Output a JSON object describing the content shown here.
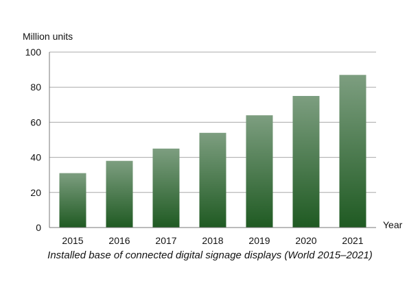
{
  "chart_data": {
    "type": "bar",
    "title": "Installed base of connected digital signage displays (World 2015–2021)",
    "ylabel": "Million units",
    "xlabel": "Year",
    "categories": [
      "2015",
      "2016",
      "2017",
      "2018",
      "2019",
      "2020",
      "2021"
    ],
    "values": [
      31,
      38,
      45,
      54,
      64,
      75,
      87
    ],
    "ylim": [
      0,
      100
    ],
    "yticks": [
      0,
      20,
      40,
      60,
      80,
      100
    ],
    "grid": true,
    "legend": "none",
    "colors": {
      "bar_top": "#7d9e80",
      "bar_bottom": "#1f5a22",
      "grid": "#a8a8a8",
      "axis": "#777777"
    }
  }
}
